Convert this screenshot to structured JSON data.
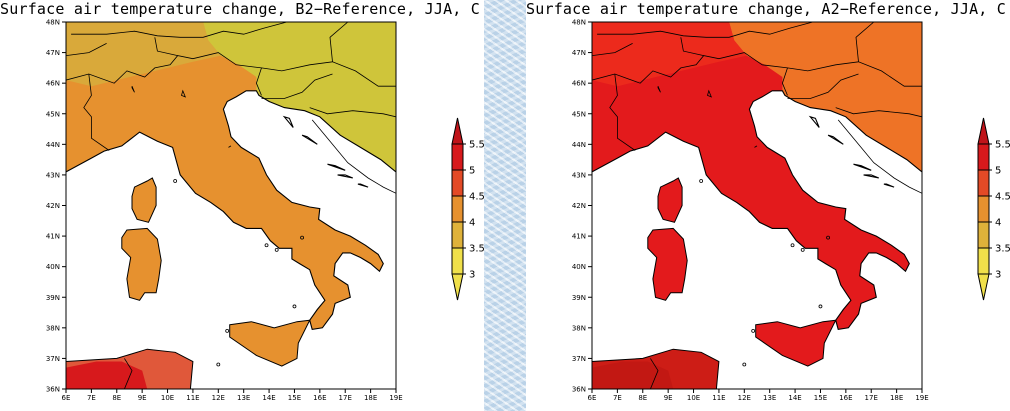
{
  "panels": [
    {
      "id": "b2",
      "title": "Surface air temperature change, B2−Reference, JJA, C",
      "palette": {
        "land": "#e6912f",
        "north": "#cfc53a",
        "mid": "#d9a93a",
        "warm": "#e0583a",
        "hot": "#d7191c"
      }
    },
    {
      "id": "a2",
      "title": "Surface air temperature change, A2−Reference, JJA, C",
      "palette": {
        "land": "#e31a1c",
        "north": "#ee7326",
        "mid": "#ec2a1c",
        "warm": "#cd1d16",
        "hot": "#c21813"
      }
    }
  ],
  "map": {
    "lat_ticks": [
      "48N",
      "47N",
      "46N",
      "45N",
      "44N",
      "43N",
      "42N",
      "41N",
      "40N",
      "39N",
      "38N",
      "37N",
      "36N"
    ],
    "lon_ticks": [
      "6E",
      "7E",
      "8E",
      "9E",
      "10E",
      "11E",
      "12E",
      "13E",
      "14E",
      "15E",
      "16E",
      "17E",
      "18E",
      "19E"
    ],
    "lon_range": [
      6,
      19
    ],
    "lat_range": [
      36,
      48
    ]
  },
  "colorbar": {
    "levels": [
      "5.5",
      "5",
      "4.5",
      "4",
      "3.5",
      "3"
    ],
    "colors": [
      "#c0141a",
      "#d7191c",
      "#e34a26",
      "#e6912f",
      "#dfb23a",
      "#f0e04a"
    ]
  }
}
